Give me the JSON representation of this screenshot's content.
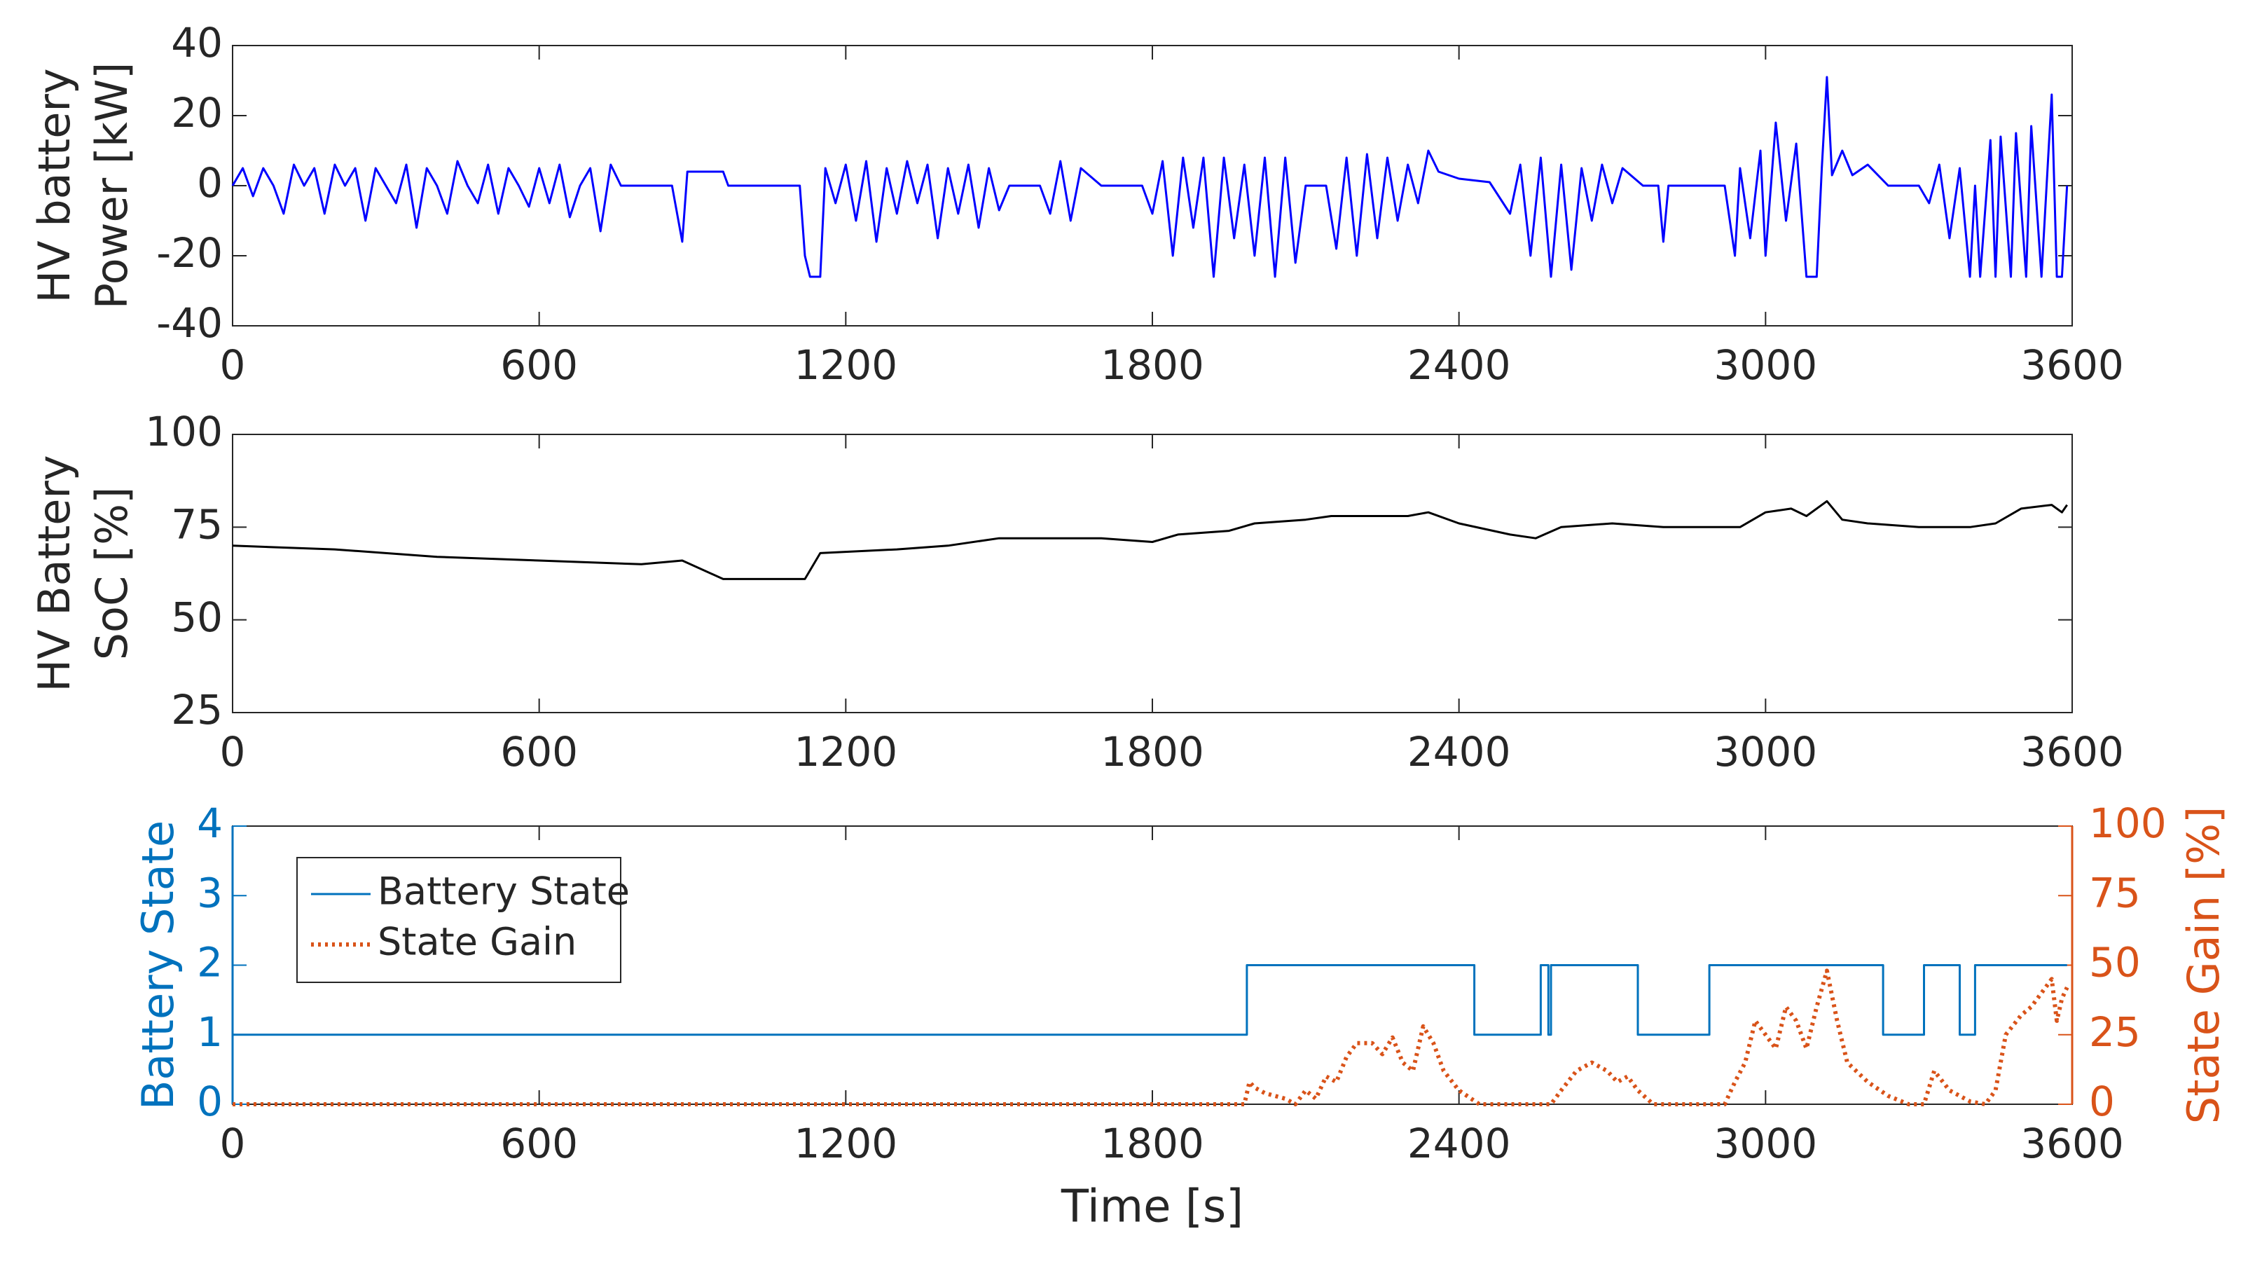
{
  "chart_data": [
    {
      "type": "line",
      "ylabel": [
        "HV battery",
        "Power [kW]"
      ],
      "xlim": [
        0,
        3600
      ],
      "xticks": [
        0,
        600,
        1200,
        1800,
        2400,
        3000,
        3600
      ],
      "ylim": [
        -40,
        40
      ],
      "yticks": [
        -40,
        -20,
        0,
        20,
        40
      ],
      "series": [
        {
          "color": "#0000ff",
          "x": [
            0,
            20,
            40,
            60,
            80,
            100,
            120,
            140,
            160,
            180,
            200,
            220,
            240,
            260,
            280,
            300,
            320,
            340,
            360,
            380,
            400,
            420,
            440,
            460,
            480,
            500,
            520,
            540,
            560,
            580,
            600,
            620,
            640,
            660,
            680,
            700,
            720,
            740,
            760,
            800,
            860,
            880,
            890,
            960,
            970,
            1110,
            1120,
            1130,
            1150,
            1160,
            1180,
            1200,
            1220,
            1240,
            1260,
            1280,
            1300,
            1320,
            1340,
            1360,
            1380,
            1400,
            1420,
            1440,
            1460,
            1480,
            1500,
            1520,
            1580,
            1600,
            1620,
            1640,
            1660,
            1700,
            1780,
            1800,
            1820,
            1840,
            1860,
            1880,
            1900,
            1920,
            1940,
            1960,
            1980,
            2000,
            2020,
            2040,
            2060,
            2080,
            2100,
            2140,
            2160,
            2180,
            2200,
            2220,
            2240,
            2260,
            2280,
            2300,
            2320,
            2340,
            2360,
            2400,
            2460,
            2500,
            2520,
            2540,
            2560,
            2580,
            2600,
            2620,
            2640,
            2660,
            2680,
            2700,
            2720,
            2760,
            2790,
            2800,
            2810,
            2920,
            2940,
            2950,
            2970,
            2990,
            3000,
            3020,
            3040,
            3060,
            3080,
            3100,
            3110,
            3120,
            3130,
            3150,
            3170,
            3200,
            3240,
            3300,
            3320,
            3340,
            3360,
            3380,
            3400,
            3410,
            3420,
            3440,
            3450,
            3460,
            3480,
            3490,
            3510,
            3520,
            3540,
            3560,
            3570,
            3580,
            3590
          ],
          "values": [
            0,
            5,
            -3,
            5,
            0,
            -8,
            6,
            0,
            5,
            -8,
            6,
            0,
            5,
            -10,
            5,
            0,
            -5,
            6,
            -12,
            5,
            0,
            -8,
            7,
            0,
            -5,
            6,
            -8,
            5,
            0,
            -6,
            5,
            -5,
            6,
            -9,
            0,
            5,
            -13,
            6,
            0,
            0,
            0,
            -16,
            4,
            4,
            0,
            0,
            -20,
            -26,
            -26,
            5,
            -5,
            6,
            -10,
            7,
            -16,
            5,
            -8,
            7,
            -5,
            6,
            -15,
            5,
            -8,
            6,
            -12,
            5,
            -7,
            0,
            0,
            -8,
            7,
            -10,
            5,
            0,
            0,
            -8,
            7,
            -20,
            8,
            -12,
            8,
            -26,
            8,
            -15,
            6,
            -20,
            8,
            -26,
            8,
            -22,
            0,
            0,
            -18,
            8,
            -20,
            9,
            -15,
            8,
            -10,
            6,
            -5,
            10,
            4,
            2,
            1,
            -8,
            6,
            -20,
            8,
            -26,
            6,
            -24,
            5,
            -10,
            6,
            -5,
            5,
            0,
            0,
            -16,
            0,
            0,
            -20,
            5,
            -15,
            10,
            -20,
            18,
            -10,
            12,
            -26,
            -26,
            5,
            31,
            3,
            10,
            3,
            6,
            0,
            0,
            -5,
            6,
            -15,
            5,
            -26,
            0,
            -26,
            13,
            -26,
            14,
            -26,
            15,
            -26,
            17,
            -26,
            26,
            -26,
            -26,
            0
          ]
        }
      ]
    },
    {
      "type": "line",
      "ylabel": [
        "HV Battery",
        "SoC [%]"
      ],
      "xlim": [
        0,
        3600
      ],
      "xticks": [
        0,
        600,
        1200,
        1800,
        2400,
        3000,
        3600
      ],
      "ylim": [
        25,
        100
      ],
      "yticks": [
        25,
        50,
        75,
        100
      ],
      "series": [
        {
          "color": "#000000",
          "x": [
            0,
            200,
            400,
            600,
            800,
            880,
            960,
            1120,
            1150,
            1300,
            1400,
            1500,
            1700,
            1800,
            1850,
            1950,
            2000,
            2100,
            2150,
            2200,
            2300,
            2340,
            2400,
            2500,
            2550,
            2600,
            2700,
            2800,
            2900,
            2950,
            3000,
            3050,
            3080,
            3120,
            3150,
            3200,
            3300,
            3400,
            3450,
            3500,
            3560,
            3580,
            3590
          ],
          "values": [
            70,
            69,
            67,
            66,
            65,
            66,
            61,
            61,
            68,
            69,
            70,
            72,
            72,
            71,
            73,
            74,
            76,
            77,
            78,
            78,
            78,
            79,
            76,
            73,
            72,
            75,
            76,
            75,
            75,
            75,
            79,
            80,
            78,
            82,
            77,
            76,
            75,
            75,
            76,
            80,
            81,
            79,
            81
          ]
        }
      ]
    },
    {
      "type": "line",
      "ylabel": [
        "Battery State"
      ],
      "y2label": "State Gain [%]",
      "xlabel": "Time [s]",
      "xlim": [
        0,
        3600
      ],
      "xticks": [
        0,
        600,
        1200,
        1800,
        2400,
        3000,
        3600
      ],
      "ylim": [
        0,
        4
      ],
      "yticks": [
        0,
        1,
        2,
        3,
        4
      ],
      "ycolor": "#0072bd",
      "y2lim": [
        0,
        100
      ],
      "y2ticks": [
        0,
        25,
        50,
        75,
        100
      ],
      "y2color": "#d95319",
      "legend": "northwest",
      "series": [
        {
          "name": "Battery State",
          "color": "#0072bd",
          "x": [
            0,
            1985,
            1985,
            2430,
            2430,
            2560,
            2560,
            2575,
            2575,
            2580,
            2580,
            2750,
            2750,
            2890,
            2890,
            3230,
            3230,
            3310,
            3310,
            3380,
            3380,
            3410,
            3410,
            3590
          ],
          "values": [
            1,
            1,
            2,
            2,
            1,
            1,
            2,
            2,
            1,
            1,
            2,
            2,
            1,
            1,
            2,
            2,
            1,
            1,
            2,
            2,
            1,
            1,
            2,
            2
          ]
        },
        {
          "name": "State Gain",
          "color": "#d95319",
          "axis": "y2",
          "dash": "dotted",
          "x": [
            0,
            1980,
            1990,
            2000,
            2020,
            2060,
            2080,
            2100,
            2120,
            2140,
            2160,
            2180,
            2200,
            2230,
            2250,
            2270,
            2290,
            2310,
            2330,
            2350,
            2370,
            2400,
            2440,
            2580,
            2600,
            2630,
            2660,
            2690,
            2710,
            2730,
            2750,
            2780,
            2920,
            2940,
            2960,
            2980,
            3000,
            3020,
            3040,
            3060,
            3080,
            3100,
            3120,
            3140,
            3160,
            3200,
            3240,
            3280,
            3310,
            3330,
            3360,
            3400,
            3430,
            3450,
            3470,
            3500,
            3520,
            3540,
            3560,
            3570,
            3580,
            3590
          ],
          "values": [
            0,
            0,
            8,
            6,
            4,
            2,
            0,
            5,
            2,
            10,
            8,
            17,
            22,
            22,
            18,
            24,
            15,
            12,
            28,
            22,
            12,
            5,
            0,
            0,
            5,
            12,
            15,
            12,
            8,
            10,
            5,
            0,
            0,
            8,
            15,
            30,
            25,
            20,
            35,
            30,
            20,
            35,
            48,
            30,
            15,
            8,
            3,
            0,
            0,
            12,
            5,
            1,
            0,
            5,
            25,
            32,
            35,
            40,
            45,
            30,
            38,
            42
          ]
        }
      ]
    }
  ]
}
